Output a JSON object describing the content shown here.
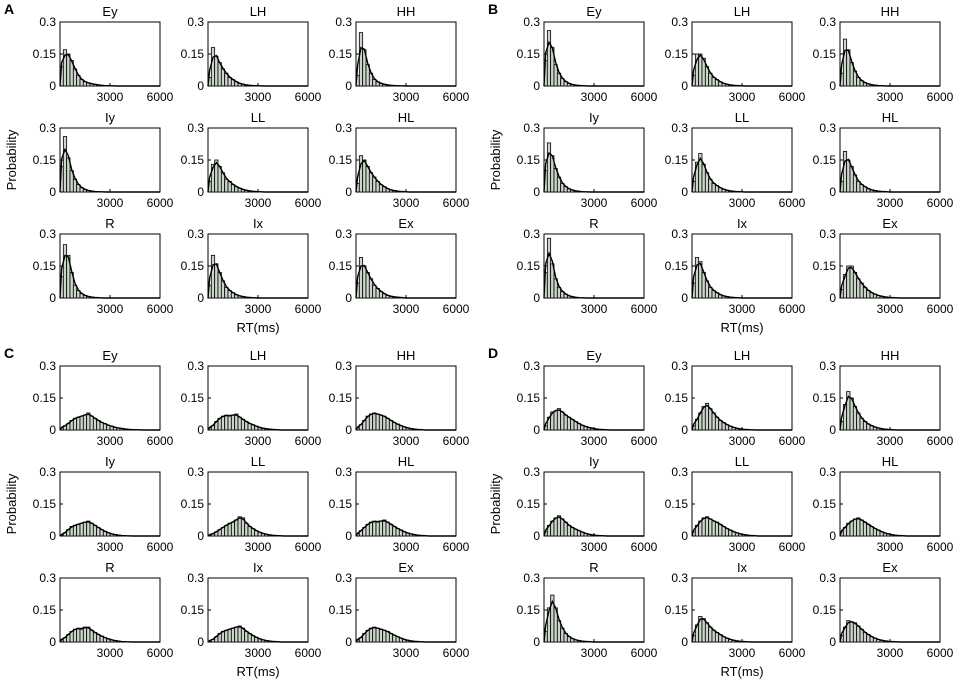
{
  "chart_data": {
    "type": "bar",
    "figure_description": "RT distributions per condition for four panels",
    "panels": [
      {
        "label": "A",
        "ylabel": "Probability",
        "xlabel": "RT(ms)",
        "xlim": [
          0,
          6000
        ],
        "ylim": [
          0,
          0.3
        ],
        "xticks": [
          "3000",
          "6000"
        ],
        "yticks": [
          "0",
          "0.15",
          "0.3"
        ],
        "bin_width_ms": 200,
        "subplots": [
          {
            "title": "Ey",
            "values": [
              0.09,
              0.17,
              0.15,
              0.12,
              0.08,
              0.05,
              0.03,
              0.02,
              0.015,
              0.01,
              0.008,
              0.005,
              0.003,
              0.002,
              0.001
            ]
          },
          {
            "title": "LH",
            "values": [
              0.04,
              0.18,
              0.14,
              0.11,
              0.08,
              0.06,
              0.04,
              0.03,
              0.02,
              0.012,
              0.008,
              0.005,
              0.003,
              0.002,
              0.001
            ]
          },
          {
            "title": "HH",
            "values": [
              0.05,
              0.25,
              0.17,
              0.1,
              0.06,
              0.03,
              0.02,
              0.012,
              0.008,
              0.005,
              0.003,
              0.002,
              0.001
            ]
          },
          {
            "title": "Iy",
            "values": [
              0.12,
              0.26,
              0.16,
              0.1,
              0.06,
              0.035,
              0.02,
              0.012,
              0.007,
              0.004,
              0.002,
              0.001
            ]
          },
          {
            "title": "LL",
            "values": [
              0.05,
              0.13,
              0.15,
              0.12,
              0.09,
              0.06,
              0.05,
              0.035,
              0.025,
              0.018,
              0.012,
              0.008,
              0.005,
              0.003,
              0.002
            ]
          },
          {
            "title": "HL",
            "values": [
              0.04,
              0.17,
              0.15,
              0.12,
              0.09,
              0.07,
              0.05,
              0.035,
              0.025,
              0.015,
              0.01,
              0.006,
              0.004,
              0.002
            ]
          },
          {
            "title": "R",
            "values": [
              0.1,
              0.25,
              0.2,
              0.12,
              0.06,
              0.035,
              0.02,
              0.012,
              0.007,
              0.004,
              0.002
            ]
          },
          {
            "title": "Ix",
            "values": [
              0.06,
              0.2,
              0.16,
              0.12,
              0.08,
              0.05,
              0.035,
              0.025,
              0.015,
              0.01,
              0.006,
              0.004,
              0.002
            ]
          },
          {
            "title": "Ex",
            "values": [
              0.07,
              0.19,
              0.15,
              0.12,
              0.09,
              0.06,
              0.045,
              0.03,
              0.02,
              0.012,
              0.008,
              0.005,
              0.003
            ]
          }
        ]
      },
      {
        "label": "B",
        "ylabel": "Probability",
        "xlabel": "RT(ms)",
        "xlim": [
          0,
          6000
        ],
        "ylim": [
          0,
          0.3
        ],
        "xticks": [
          "3000",
          "6000"
        ],
        "yticks": [
          "0",
          "0.15",
          "0.3"
        ],
        "bin_width_ms": 200,
        "subplots": [
          {
            "title": "Ey",
            "values": [
              0.12,
              0.26,
              0.18,
              0.1,
              0.06,
              0.035,
              0.02,
              0.012,
              0.007,
              0.004,
              0.002
            ]
          },
          {
            "title": "LH",
            "values": [
              0.05,
              0.15,
              0.15,
              0.13,
              0.09,
              0.06,
              0.04,
              0.03,
              0.02,
              0.012,
              0.008,
              0.005,
              0.003,
              0.002
            ]
          },
          {
            "title": "HH",
            "values": [
              0.06,
              0.22,
              0.17,
              0.11,
              0.07,
              0.04,
              0.025,
              0.015,
              0.01,
              0.006,
              0.003,
              0.002
            ]
          },
          {
            "title": "Iy",
            "values": [
              0.1,
              0.23,
              0.17,
              0.11,
              0.07,
              0.04,
              0.025,
              0.015,
              0.009,
              0.005,
              0.003,
              0.001
            ]
          },
          {
            "title": "LL",
            "values": [
              0.05,
              0.14,
              0.18,
              0.13,
              0.09,
              0.06,
              0.04,
              0.03,
              0.02,
              0.013,
              0.008,
              0.005,
              0.003,
              0.002
            ]
          },
          {
            "title": "HL",
            "values": [
              0.05,
              0.19,
              0.15,
              0.12,
              0.08,
              0.05,
              0.035,
              0.025,
              0.015,
              0.01,
              0.006,
              0.004,
              0.002
            ]
          },
          {
            "title": "R",
            "values": [
              0.12,
              0.28,
              0.16,
              0.09,
              0.05,
              0.03,
              0.018,
              0.01,
              0.006,
              0.003,
              0.001
            ]
          },
          {
            "title": "Ix",
            "values": [
              0.07,
              0.19,
              0.17,
              0.12,
              0.08,
              0.05,
              0.035,
              0.025,
              0.015,
              0.01,
              0.006,
              0.004,
              0.002
            ]
          },
          {
            "title": "Ex",
            "values": [
              0.04,
              0.11,
              0.15,
              0.15,
              0.12,
              0.09,
              0.07,
              0.05,
              0.035,
              0.025,
              0.018,
              0.012,
              0.008,
              0.005,
              0.003,
              0.002
            ]
          }
        ]
      },
      {
        "label": "C",
        "ylabel": "Probability",
        "xlabel": "RT(ms)",
        "xlim": [
          0,
          6000
        ],
        "ylim": [
          0,
          0.3
        ],
        "xticks": [
          "3000",
          "6000"
        ],
        "yticks": [
          "0",
          "0.15",
          "0.3"
        ],
        "bin_width_ms": 200,
        "subplots": [
          {
            "title": "Ey",
            "values": [
              0.01,
              0.02,
              0.03,
              0.045,
              0.055,
              0.06,
              0.065,
              0.07,
              0.08,
              0.065,
              0.055,
              0.045,
              0.035,
              0.03,
              0.022,
              0.018,
              0.012,
              0.01,
              0.007,
              0.005,
              0.003,
              0.002,
              0.001
            ]
          },
          {
            "title": "LH",
            "values": [
              0.01,
              0.02,
              0.04,
              0.055,
              0.065,
              0.07,
              0.065,
              0.07,
              0.075,
              0.06,
              0.05,
              0.04,
              0.03,
              0.025,
              0.018,
              0.012,
              0.008,
              0.006,
              0.004,
              0.002
            ]
          },
          {
            "title": "HH",
            "values": [
              0.01,
              0.025,
              0.045,
              0.065,
              0.075,
              0.08,
              0.075,
              0.07,
              0.065,
              0.055,
              0.045,
              0.035,
              0.028,
              0.02,
              0.015,
              0.01,
              0.007,
              0.004,
              0.002
            ]
          },
          {
            "title": "Iy",
            "values": [
              0.005,
              0.015,
              0.03,
              0.045,
              0.05,
              0.055,
              0.06,
              0.065,
              0.07,
              0.06,
              0.05,
              0.04,
              0.03,
              0.022,
              0.015,
              0.01,
              0.007,
              0.004,
              0.002,
              0.001
            ]
          },
          {
            "title": "LL",
            "values": [
              0.005,
              0.01,
              0.02,
              0.03,
              0.04,
              0.05,
              0.06,
              0.065,
              0.075,
              0.09,
              0.085,
              0.06,
              0.045,
              0.035,
              0.025,
              0.018,
              0.012,
              0.008,
              0.005,
              0.003,
              0.002
            ]
          },
          {
            "title": "HL",
            "values": [
              0.01,
              0.025,
              0.04,
              0.055,
              0.065,
              0.07,
              0.065,
              0.07,
              0.075,
              0.065,
              0.055,
              0.045,
              0.035,
              0.028,
              0.02,
              0.014,
              0.01,
              0.006,
              0.004,
              0.002
            ]
          },
          {
            "title": "R",
            "values": [
              0.01,
              0.02,
              0.035,
              0.05,
              0.06,
              0.065,
              0.06,
              0.07,
              0.07,
              0.055,
              0.045,
              0.035,
              0.028,
              0.02,
              0.015,
              0.01,
              0.007,
              0.004,
              0.002,
              0.001
            ]
          },
          {
            "title": "Ix",
            "values": [
              0.005,
              0.012,
              0.025,
              0.04,
              0.05,
              0.055,
              0.06,
              0.065,
              0.07,
              0.075,
              0.065,
              0.05,
              0.04,
              0.03,
              0.022,
              0.015,
              0.01,
              0.007,
              0.004,
              0.002
            ]
          },
          {
            "title": "Ex",
            "values": [
              0.01,
              0.02,
              0.04,
              0.055,
              0.065,
              0.07,
              0.065,
              0.06,
              0.055,
              0.05,
              0.04,
              0.032,
              0.025,
              0.018,
              0.012,
              0.008,
              0.005,
              0.003,
              0.002
            ]
          }
        ]
      },
      {
        "label": "D",
        "ylabel": "Probability",
        "xlabel": "RT(ms)",
        "xlim": [
          0,
          6000
        ],
        "ylim": [
          0,
          0.3
        ],
        "xticks": [
          "3000",
          "6000"
        ],
        "yticks": [
          "0",
          "0.15",
          "0.3"
        ],
        "bin_width_ms": 200,
        "subplots": [
          {
            "title": "Ey",
            "values": [
              0.02,
              0.06,
              0.085,
              0.09,
              0.1,
              0.085,
              0.07,
              0.06,
              0.05,
              0.04,
              0.03,
              0.022,
              0.016,
              0.012,
              0.008,
              0.005,
              0.003,
              0.002
            ]
          },
          {
            "title": "LH",
            "values": [
              0.02,
              0.05,
              0.08,
              0.11,
              0.125,
              0.1,
              0.08,
              0.06,
              0.045,
              0.035,
              0.025,
              0.018,
              0.012,
              0.008,
              0.005,
              0.003,
              0.002
            ]
          },
          {
            "title": "HH",
            "values": [
              0.04,
              0.12,
              0.18,
              0.15,
              0.11,
              0.08,
              0.055,
              0.04,
              0.028,
              0.02,
              0.014,
              0.009,
              0.006,
              0.004,
              0.002
            ]
          },
          {
            "title": "Iy",
            "values": [
              0.02,
              0.05,
              0.07,
              0.085,
              0.095,
              0.08,
              0.065,
              0.05,
              0.04,
              0.032,
              0.025,
              0.018,
              0.012,
              0.008,
              0.005,
              0.003,
              0.002
            ]
          },
          {
            "title": "LL",
            "values": [
              0.02,
              0.05,
              0.07,
              0.085,
              0.09,
              0.08,
              0.07,
              0.065,
              0.055,
              0.045,
              0.035,
              0.028,
              0.02,
              0.015,
              0.01,
              0.007,
              0.004,
              0.002
            ]
          },
          {
            "title": "HL",
            "values": [
              0.02,
              0.04,
              0.06,
              0.07,
              0.08,
              0.085,
              0.075,
              0.065,
              0.055,
              0.045,
              0.035,
              0.028,
              0.02,
              0.014,
              0.01,
              0.006,
              0.004,
              0.002
            ]
          },
          {
            "title": "R",
            "values": [
              0.05,
              0.16,
              0.22,
              0.16,
              0.1,
              0.065,
              0.04,
              0.025,
              0.016,
              0.01,
              0.006,
              0.004,
              0.002
            ]
          },
          {
            "title": "Ix",
            "values": [
              0.03,
              0.08,
              0.12,
              0.11,
              0.09,
              0.07,
              0.055,
              0.045,
              0.035,
              0.025,
              0.018,
              0.012,
              0.008,
              0.005,
              0.003,
              0.002
            ]
          },
          {
            "title": "Ex",
            "values": [
              0.03,
              0.07,
              0.1,
              0.095,
              0.09,
              0.075,
              0.06,
              0.045,
              0.035,
              0.025,
              0.018,
              0.012,
              0.008,
              0.005,
              0.003,
              0.002
            ]
          }
        ]
      }
    ]
  }
}
